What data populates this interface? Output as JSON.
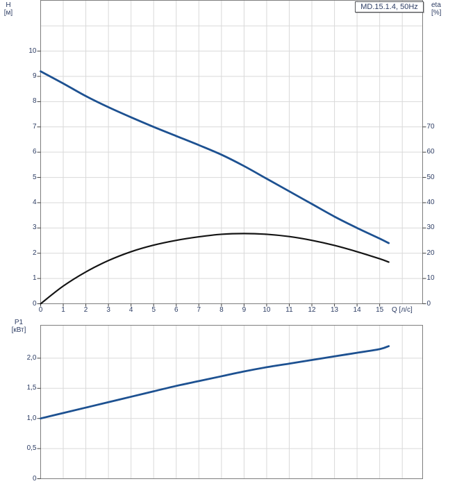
{
  "model_box": {
    "text": "MD.15.1.4, 50Hz"
  },
  "colors": {
    "curve_blue": "#1d5191",
    "curve_black": "#141414",
    "grid": "#d9d9d9",
    "frame": "#7d7d7d",
    "tick": "#3f3f3f",
    "text": "#2c3c63",
    "background": "#ffffff"
  },
  "chart_data": [
    {
      "id": "hq",
      "type": "line",
      "title": "Pump head and efficiency vs flow",
      "x": {
        "label": "Q [л/с]",
        "range": [
          0,
          16.9
        ],
        "ticks": [
          {
            "v": 0,
            "label": "0"
          },
          {
            "v": 1,
            "label": "1"
          },
          {
            "v": 2,
            "label": "2"
          },
          {
            "v": 3,
            "label": "3"
          },
          {
            "v": 4,
            "label": "4"
          },
          {
            "v": 5,
            "label": "5"
          },
          {
            "v": 6,
            "label": "6"
          },
          {
            "v": 7,
            "label": "7"
          },
          {
            "v": 8,
            "label": "8"
          },
          {
            "v": 9,
            "label": "9"
          },
          {
            "v": 10,
            "label": "10"
          },
          {
            "v": 11,
            "label": "11"
          },
          {
            "v": 12,
            "label": "12"
          },
          {
            "v": 13,
            "label": "13"
          },
          {
            "v": 14,
            "label": "14"
          },
          {
            "v": 15,
            "label": "15"
          }
        ],
        "gridlines": [
          1,
          2,
          3,
          4,
          5,
          6,
          7,
          8,
          9,
          10,
          11,
          12,
          13,
          14,
          15,
          16
        ]
      },
      "y_left": {
        "label": [
          "H",
          "[м]"
        ],
        "range": [
          0,
          12.01
        ],
        "ticks": [
          {
            "v": 0,
            "label": "0"
          },
          {
            "v": 1,
            "label": "1"
          },
          {
            "v": 2,
            "label": "2"
          },
          {
            "v": 3,
            "label": "3"
          },
          {
            "v": 4,
            "label": "4"
          },
          {
            "v": 5,
            "label": "5"
          },
          {
            "v": 6,
            "label": "6"
          },
          {
            "v": 7,
            "label": "7"
          },
          {
            "v": 8,
            "label": "8"
          },
          {
            "v": 9,
            "label": "9"
          },
          {
            "v": 10,
            "label": "10"
          }
        ],
        "gridlines": [
          1,
          2,
          3,
          4,
          5,
          6,
          7,
          8,
          9,
          10,
          11
        ]
      },
      "y_right": {
        "label": [
          "eta",
          "[%]"
        ],
        "range": [
          0,
          120.1
        ],
        "ticks": [
          {
            "v": 0,
            "label": "0"
          },
          {
            "v": 10,
            "label": "10"
          },
          {
            "v": 20,
            "label": "20"
          },
          {
            "v": 30,
            "label": "30"
          },
          {
            "v": 40,
            "label": "40"
          },
          {
            "v": 50,
            "label": "50"
          },
          {
            "v": 60,
            "label": "60"
          },
          {
            "v": 70,
            "label": "70"
          }
        ]
      },
      "series": [
        {
          "name": "head-curve",
          "axis": "left",
          "color_key": "curve_blue",
          "stroke_width": 2.8,
          "x": [
            0,
            1,
            2,
            3,
            4,
            5,
            6,
            7,
            8,
            9,
            10,
            11,
            12,
            13,
            14,
            15,
            15.4
          ],
          "y": [
            9.2,
            8.72,
            8.22,
            7.78,
            7.38,
            7.0,
            6.64,
            6.28,
            5.9,
            5.45,
            4.95,
            4.45,
            3.95,
            3.45,
            3.0,
            2.58,
            2.4
          ]
        },
        {
          "name": "efficiency-curve",
          "axis": "right",
          "color_key": "curve_black",
          "stroke_width": 2.2,
          "x": [
            0,
            1,
            2,
            3,
            4,
            5,
            6,
            7,
            8,
            9,
            10,
            11,
            12,
            13,
            14,
            15,
            15.4
          ],
          "y": [
            0,
            7,
            12.6,
            17.1,
            20.6,
            23.2,
            25.1,
            26.5,
            27.5,
            27.8,
            27.5,
            26.6,
            25.1,
            23.1,
            20.6,
            17.8,
            16.5
          ]
        }
      ]
    },
    {
      "id": "p1",
      "type": "line",
      "title": "Power input vs flow",
      "x": {
        "label": "",
        "range": [
          0,
          16.9
        ],
        "ticks": [],
        "gridlines": [
          1,
          2,
          3,
          4,
          5,
          6,
          7,
          8,
          9,
          10,
          11,
          12,
          13,
          14,
          15,
          16
        ]
      },
      "y_left": {
        "label": [
          "P1",
          "[кВт]"
        ],
        "range": [
          0,
          2.546
        ],
        "ticks": [
          {
            "v": 0,
            "label": "0"
          },
          {
            "v": 0.5,
            "label": "0,5"
          },
          {
            "v": 1,
            "label": "1,0"
          },
          {
            "v": 1.5,
            "label": "1,5"
          },
          {
            "v": 2,
            "label": "2,0"
          }
        ],
        "gridlines": [
          0.5,
          1,
          1.5,
          2
        ]
      },
      "series": [
        {
          "name": "power-curve",
          "axis": "left",
          "color_key": "curve_blue",
          "stroke_width": 2.8,
          "x": [
            0,
            1,
            2,
            3,
            4,
            5,
            6,
            7,
            8,
            9,
            10,
            11,
            12,
            13,
            14,
            15,
            15.4
          ],
          "y": [
            1.0,
            1.09,
            1.18,
            1.27,
            1.36,
            1.45,
            1.54,
            1.62,
            1.7,
            1.78,
            1.85,
            1.91,
            1.97,
            2.03,
            2.09,
            2.15,
            2.2
          ]
        }
      ]
    }
  ]
}
